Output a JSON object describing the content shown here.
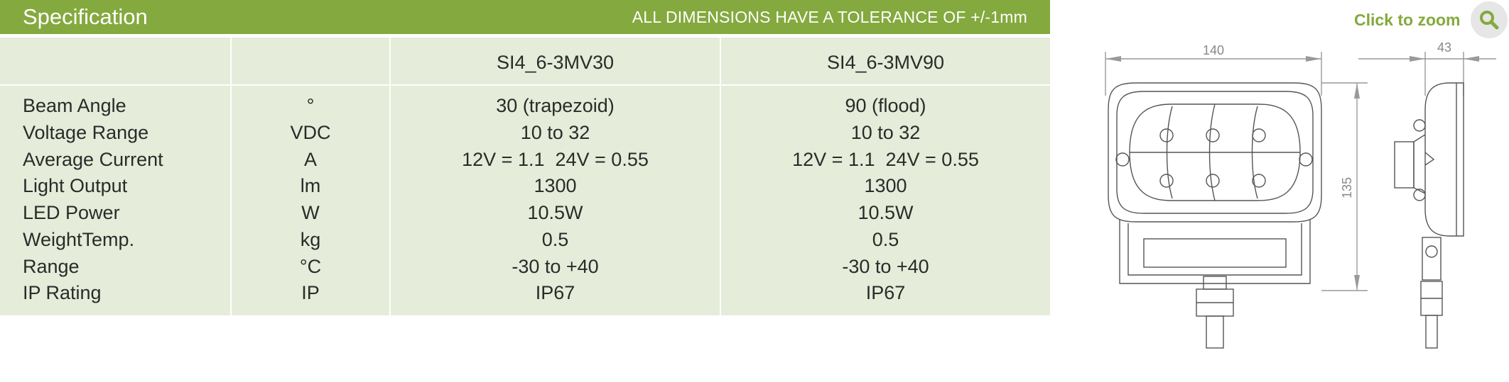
{
  "header": {
    "title": "Specification",
    "tolerance": "ALL DIMENSIONS HAVE A TOLERANCE OF +/-1mm"
  },
  "table": {
    "models": [
      "SI4_6-3MV30",
      "SI4_6-3MV90"
    ],
    "labels": [
      "Beam Angle",
      "Voltage Range",
      "Average Current",
      "Light Output",
      "LED Power",
      "WeightTemp.",
      "Range",
      "IP Rating"
    ],
    "units": [
      "°",
      "VDC",
      "A",
      "lm",
      "W",
      "kg",
      "°C",
      "IP"
    ],
    "values": [
      [
        "30 (trapezoid)",
        "10 to 32",
        "12V = 1.1  24V = 0.55",
        "1300",
        "10.5W",
        "0.5",
        "-30 to +40",
        "IP67"
      ],
      [
        "90 (flood)",
        "10 to 32",
        "12V = 1.1  24V = 0.55",
        "1300",
        "10.5W",
        "0.5",
        "-30 to +40",
        "IP67"
      ]
    ]
  },
  "zoom": {
    "label": "Click to zoom",
    "icon": "search-icon"
  },
  "drawing": {
    "width_dim": "140",
    "depth_dim": "43",
    "height_dim": "135"
  },
  "colors": {
    "brand": "#84a93e",
    "table_bg": "#e5ecd9"
  }
}
